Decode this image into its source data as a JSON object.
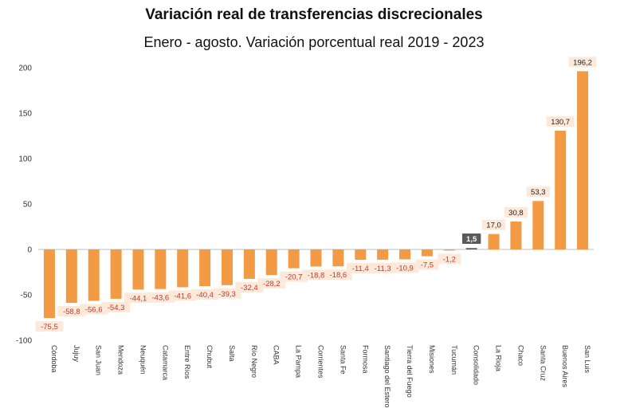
{
  "chart_data": {
    "type": "bar",
    "title": "Variación real de transferencias discrecionales",
    "subtitle": "Enero - agosto. Variación porcentual real 2019 - 2023",
    "xlabel": "",
    "ylabel": "",
    "ylim": [
      -100,
      200
    ],
    "yticks": [
      -100,
      -50,
      0,
      50,
      100,
      150,
      200
    ],
    "categories": [
      "Córdoba",
      "Jujuy",
      "San Juan",
      "Mendoza",
      "Neuquén",
      "Catamarca",
      "Entre Ríos",
      "Chubut",
      "Salta",
      "Río Negro",
      "CABA",
      "La Pampa",
      "Corrientes",
      "Santa Fe",
      "Formosa",
      "Santiago del Estero",
      "Tierra del Fuego",
      "Misiones",
      "Tucumán",
      "Consolidado",
      "La Rioja",
      "Chaco",
      "Santa Cruz",
      "Buenos Aires",
      "San Luis"
    ],
    "values": [
      -75.5,
      -58.8,
      -56.6,
      -54.3,
      -44.1,
      -43.6,
      -41.6,
      -40.4,
      -39.3,
      -32.4,
      -28.2,
      -20.7,
      -18.8,
      -18.6,
      -11.4,
      -11.3,
      -10.9,
      -7.5,
      -1.2,
      1.5,
      17.0,
      30.8,
      53.3,
      130.7,
      196.2
    ],
    "value_labels": [
      "-75,5",
      "-58,8",
      "-56,6",
      "-54,3",
      "-44,1",
      "-43,6",
      "-41,6",
      "-40,4",
      "-39,3",
      "-32,4",
      "-28,2",
      "-20,7",
      "-18,8",
      "-18,6",
      "-11,4",
      "-11,3",
      "-10,9",
      "-7,5",
      "-1,2",
      "1,5",
      "17,0",
      "30,8",
      "53,3",
      "130,7",
      "196,2"
    ],
    "highlight_category": "Consolidado",
    "bar_color": "#F39A45",
    "highlight_color": "#5A5A5A",
    "label_bg": "#FDE9DA",
    "negative_label_color": "#C0392B"
  }
}
